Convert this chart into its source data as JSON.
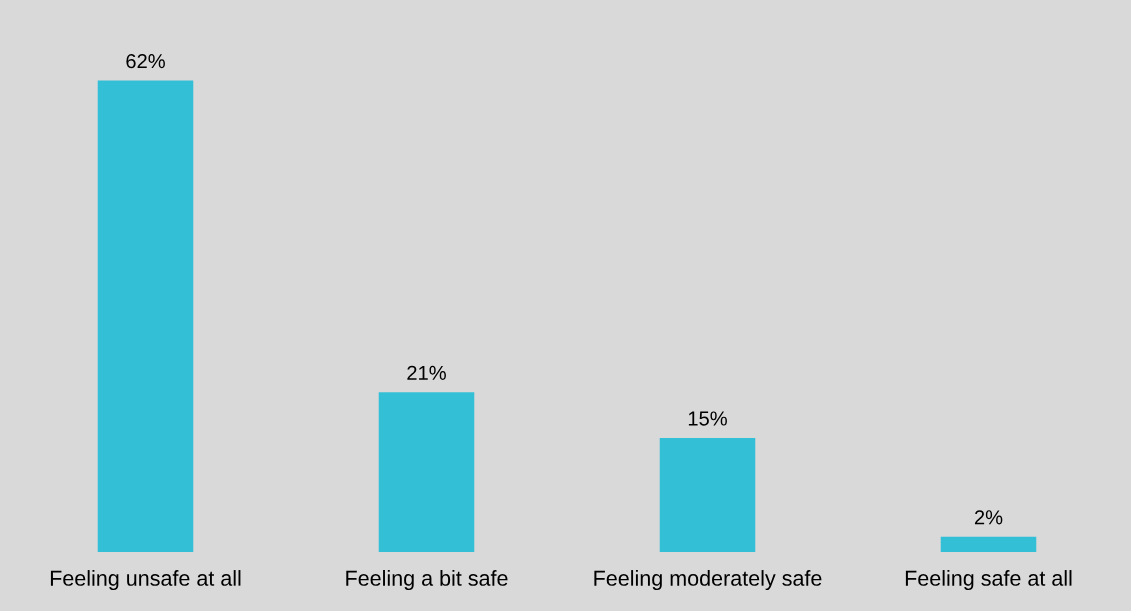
{
  "chart_data": {
    "type": "bar",
    "categories": [
      "Feeling unsafe at all",
      "Feeling a bit safe",
      "Feeling moderately safe",
      "Feeling safe at all"
    ],
    "values": [
      62,
      21,
      15,
      2
    ],
    "color": "#33c0d6",
    "value_labels": [
      "62%",
      "21%",
      "15%",
      "2%"
    ],
    "tick_labels": "x"
  }
}
